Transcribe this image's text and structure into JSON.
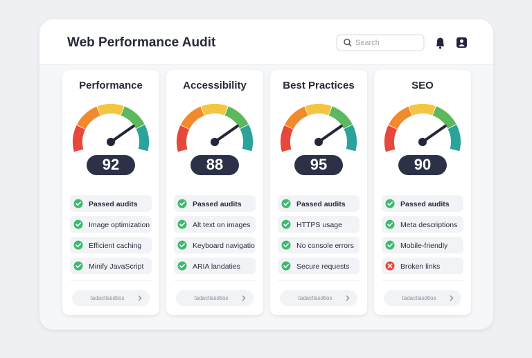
{
  "header": {
    "title": "Web Performance Audit",
    "search_placeholder": "Search"
  },
  "cards": [
    {
      "title": "Performance",
      "score": 92,
      "items": [
        {
          "label": "Passed audits",
          "status": "pass"
        },
        {
          "label": "Image optimization",
          "status": "pass"
        },
        {
          "label": "Efficient caching",
          "status": "pass"
        },
        {
          "label": "Minify JavaScript",
          "status": "pass"
        }
      ],
      "button": "tadactlasdtios"
    },
    {
      "title": "Accessibility",
      "score": 88,
      "items": [
        {
          "label": "Passed audits",
          "status": "pass"
        },
        {
          "label": "Alt text on images",
          "status": "pass"
        },
        {
          "label": "Keyboard navigatio",
          "status": "pass"
        },
        {
          "label": "ARIA landaties",
          "status": "pass"
        }
      ],
      "button": "tadactlasdtios"
    },
    {
      "title": "Best Practices",
      "score": 95,
      "items": [
        {
          "label": "Passed audits",
          "status": "pass"
        },
        {
          "label": "HTTPS usage",
          "status": "pass"
        },
        {
          "label": "No console errors",
          "status": "pass"
        },
        {
          "label": "Secure requests",
          "status": "pass"
        }
      ],
      "button": "tadactlasdtios"
    },
    {
      "title": "SEO",
      "score": 90,
      "items": [
        {
          "label": "Passed audits",
          "status": "pass"
        },
        {
          "label": "Meta descriptions",
          "status": "pass"
        },
        {
          "label": "Mobile-friendly",
          "status": "pass"
        },
        {
          "label": "Broken links",
          "status": "fail"
        }
      ],
      "button": "tadactlasdtios"
    }
  ]
}
